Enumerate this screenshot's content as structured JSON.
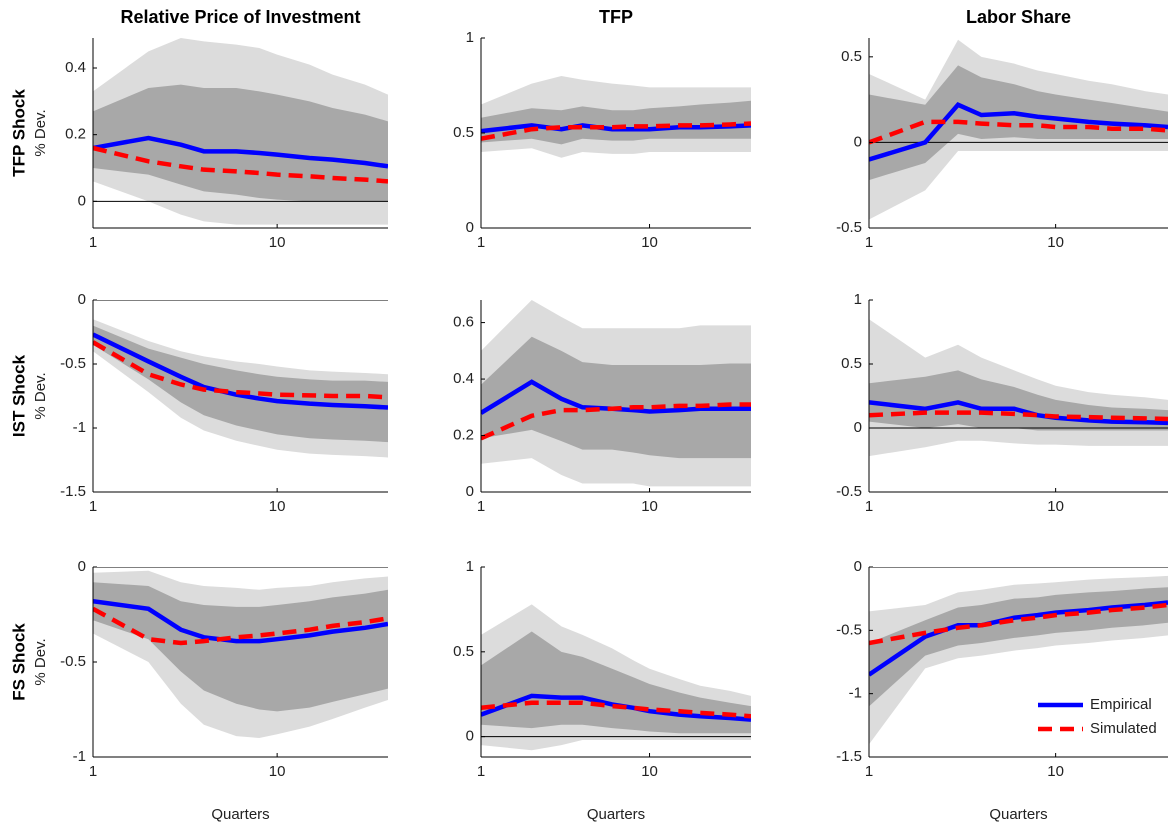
{
  "chart_data": [
    {
      "type": "line",
      "title": "Relative Price of Investment",
      "row_label": "TFP Shock",
      "ylabel": "% Dev.",
      "log_x": true,
      "zero_line": true,
      "x": [
        1,
        2,
        3,
        4,
        6,
        8,
        10,
        15,
        20,
        30,
        40
      ],
      "xlim": [
        1,
        40
      ],
      "xticks": [
        1,
        10
      ],
      "ylim": [
        -0.08,
        0.49
      ],
      "yticks": [
        0,
        0.2,
        0.4
      ],
      "bands": [
        {
          "color": "#dcdcdc",
          "lower": [
            0.06,
            0.0,
            -0.04,
            -0.06,
            -0.07,
            -0.07,
            -0.07,
            -0.07,
            -0.07,
            -0.07,
            -0.07
          ],
          "upper": [
            0.33,
            0.45,
            0.49,
            0.48,
            0.47,
            0.46,
            0.44,
            0.41,
            0.38,
            0.35,
            0.32
          ]
        },
        {
          "color": "#a8a8a8",
          "lower": [
            0.1,
            0.08,
            0.05,
            0.03,
            0.02,
            0.01,
            0.005,
            0.0,
            0.0,
            0.0,
            0.0
          ],
          "upper": [
            0.27,
            0.34,
            0.35,
            0.34,
            0.34,
            0.33,
            0.32,
            0.3,
            0.28,
            0.26,
            0.24
          ]
        }
      ],
      "series": [
        {
          "color": "#0000ff",
          "values": [
            0.16,
            0.19,
            0.17,
            0.15,
            0.15,
            0.145,
            0.14,
            0.13,
            0.125,
            0.115,
            0.105
          ]
        },
        {
          "color": "#ff0000",
          "dashed": true,
          "values": [
            0.16,
            0.12,
            0.105,
            0.095,
            0.09,
            0.085,
            0.08,
            0.075,
            0.07,
            0.065,
            0.06
          ]
        }
      ]
    },
    {
      "type": "line",
      "title": "TFP",
      "log_x": true,
      "zero_line": true,
      "x": [
        1,
        2,
        3,
        4,
        6,
        8,
        10,
        15,
        20,
        30,
        40
      ],
      "xlim": [
        1,
        40
      ],
      "xticks": [
        1,
        10
      ],
      "ylim": [
        0,
        1
      ],
      "yticks": [
        0,
        0.5,
        1
      ],
      "bands": [
        {
          "color": "#dcdcdc",
          "lower": [
            0.4,
            0.42,
            0.37,
            0.4,
            0.39,
            0.39,
            0.4,
            0.4,
            0.4,
            0.4,
            0.4
          ],
          "upper": [
            0.65,
            0.76,
            0.8,
            0.78,
            0.76,
            0.75,
            0.74,
            0.74,
            0.74,
            0.74,
            0.74
          ]
        },
        {
          "color": "#a8a8a8",
          "lower": [
            0.45,
            0.47,
            0.44,
            0.47,
            0.46,
            0.46,
            0.47,
            0.47,
            0.47,
            0.47,
            0.47
          ],
          "upper": [
            0.58,
            0.63,
            0.62,
            0.64,
            0.62,
            0.62,
            0.63,
            0.64,
            0.65,
            0.66,
            0.67
          ]
        }
      ],
      "series": [
        {
          "color": "#0000ff",
          "values": [
            0.51,
            0.54,
            0.52,
            0.54,
            0.52,
            0.52,
            0.52,
            0.53,
            0.53,
            0.535,
            0.54
          ]
        },
        {
          "color": "#ff0000",
          "dashed": true,
          "values": [
            0.47,
            0.52,
            0.53,
            0.53,
            0.53,
            0.535,
            0.535,
            0.54,
            0.54,
            0.545,
            0.55
          ]
        }
      ]
    },
    {
      "type": "line",
      "title": "Labor Share",
      "log_x": true,
      "zero_line": true,
      "x": [
        1,
        2,
        3,
        4,
        6,
        8,
        10,
        15,
        20,
        30,
        40
      ],
      "xlim": [
        1,
        40
      ],
      "xticks": [
        1,
        10
      ],
      "ylim": [
        -0.5,
        0.61
      ],
      "yticks": [
        -0.5,
        0,
        0.5
      ],
      "bands": [
        {
          "color": "#dcdcdc",
          "lower": [
            -0.45,
            -0.28,
            -0.05,
            -0.05,
            -0.05,
            -0.05,
            -0.05,
            -0.05,
            -0.05,
            -0.05,
            -0.05
          ],
          "upper": [
            0.4,
            0.25,
            0.6,
            0.5,
            0.46,
            0.42,
            0.4,
            0.36,
            0.34,
            0.3,
            0.28
          ]
        },
        {
          "color": "#a8a8a8",
          "lower": [
            -0.22,
            -0.12,
            0.05,
            0.02,
            0.03,
            0.02,
            0.02,
            0.02,
            0.02,
            0.02,
            0.02
          ],
          "upper": [
            0.28,
            0.22,
            0.45,
            0.38,
            0.34,
            0.3,
            0.28,
            0.25,
            0.23,
            0.2,
            0.18
          ]
        }
      ],
      "series": [
        {
          "color": "#0000ff",
          "values": [
            -0.1,
            0.0,
            0.22,
            0.16,
            0.17,
            0.15,
            0.14,
            0.12,
            0.11,
            0.1,
            0.09
          ]
        },
        {
          "color": "#ff0000",
          "dashed": true,
          "values": [
            0.0,
            0.12,
            0.12,
            0.11,
            0.1,
            0.1,
            0.09,
            0.09,
            0.08,
            0.08,
            0.07
          ]
        }
      ]
    },
    {
      "type": "line",
      "row_label": "IST Shock",
      "ylabel": "% Dev.",
      "log_x": true,
      "zero_line": true,
      "x": [
        1,
        2,
        3,
        4,
        6,
        8,
        10,
        15,
        20,
        30,
        40
      ],
      "xlim": [
        1,
        40
      ],
      "xticks": [
        1,
        10
      ],
      "ylim": [
        -1.5,
        0
      ],
      "yticks": [
        -1.5,
        -1,
        -0.5,
        0
      ],
      "bands": [
        {
          "color": "#dcdcdc",
          "lower": [
            -0.4,
            -0.72,
            -0.92,
            -1.02,
            -1.1,
            -1.14,
            -1.17,
            -1.2,
            -1.21,
            -1.22,
            -1.23
          ],
          "upper": [
            -0.15,
            -0.32,
            -0.4,
            -0.44,
            -0.48,
            -0.5,
            -0.52,
            -0.55,
            -0.56,
            -0.57,
            -0.58
          ]
        },
        {
          "color": "#a8a8a8",
          "lower": [
            -0.35,
            -0.62,
            -0.8,
            -0.9,
            -0.98,
            -1.02,
            -1.05,
            -1.08,
            -1.09,
            -1.1,
            -1.11
          ],
          "upper": [
            -0.2,
            -0.38,
            -0.45,
            -0.5,
            -0.55,
            -0.58,
            -0.6,
            -0.62,
            -0.63,
            -0.63,
            -0.64
          ]
        }
      ],
      "series": [
        {
          "color": "#0000ff",
          "values": [
            -0.27,
            -0.48,
            -0.6,
            -0.68,
            -0.74,
            -0.77,
            -0.79,
            -0.81,
            -0.82,
            -0.83,
            -0.84
          ]
        },
        {
          "color": "#ff0000",
          "dashed": true,
          "values": [
            -0.33,
            -0.58,
            -0.66,
            -0.7,
            -0.72,
            -0.73,
            -0.74,
            -0.745,
            -0.75,
            -0.75,
            -0.76
          ]
        }
      ]
    },
    {
      "type": "line",
      "log_x": true,
      "zero_line": true,
      "x": [
        1,
        2,
        3,
        4,
        6,
        8,
        10,
        15,
        20,
        30,
        40
      ],
      "xlim": [
        1,
        40
      ],
      "xticks": [
        1,
        10
      ],
      "ylim": [
        0,
        0.68
      ],
      "yticks": [
        0,
        0.2,
        0.4,
        0.6
      ],
      "bands": [
        {
          "color": "#dcdcdc",
          "lower": [
            0.1,
            0.12,
            0.06,
            0.03,
            0.03,
            0.03,
            0.02,
            0.02,
            0.02,
            0.02,
            0.02
          ],
          "upper": [
            0.5,
            0.68,
            0.62,
            0.58,
            0.58,
            0.58,
            0.58,
            0.58,
            0.59,
            0.59,
            0.59
          ]
        },
        {
          "color": "#a8a8a8",
          "lower": [
            0.19,
            0.22,
            0.18,
            0.15,
            0.15,
            0.14,
            0.13,
            0.12,
            0.12,
            0.12,
            0.12
          ],
          "upper": [
            0.38,
            0.55,
            0.5,
            0.46,
            0.45,
            0.45,
            0.45,
            0.45,
            0.45,
            0.455,
            0.455
          ]
        }
      ],
      "series": [
        {
          "color": "#0000ff",
          "values": [
            0.28,
            0.39,
            0.33,
            0.3,
            0.295,
            0.29,
            0.285,
            0.29,
            0.295,
            0.295,
            0.295
          ]
        },
        {
          "color": "#ff0000",
          "dashed": true,
          "values": [
            0.19,
            0.27,
            0.29,
            0.29,
            0.295,
            0.3,
            0.3,
            0.305,
            0.305,
            0.31,
            0.31
          ]
        }
      ]
    },
    {
      "type": "line",
      "log_x": true,
      "zero_line": true,
      "x": [
        1,
        2,
        3,
        4,
        6,
        8,
        10,
        15,
        20,
        30,
        40
      ],
      "xlim": [
        1,
        40
      ],
      "xticks": [
        1,
        10
      ],
      "ylim": [
        -0.5,
        1
      ],
      "yticks": [
        -0.5,
        0,
        0.5,
        1
      ],
      "bands": [
        {
          "color": "#dcdcdc",
          "lower": [
            -0.22,
            -0.15,
            -0.1,
            -0.1,
            -0.12,
            -0.13,
            -0.13,
            -0.14,
            -0.14,
            -0.14,
            -0.14
          ],
          "upper": [
            0.85,
            0.55,
            0.65,
            0.55,
            0.45,
            0.38,
            0.33,
            0.28,
            0.26,
            0.24,
            0.22
          ]
        },
        {
          "color": "#a8a8a8",
          "lower": [
            0.05,
            0.0,
            0.03,
            0.0,
            0.0,
            -0.02,
            -0.02,
            -0.02,
            -0.02,
            -0.02,
            -0.02
          ],
          "upper": [
            0.35,
            0.4,
            0.45,
            0.38,
            0.32,
            0.26,
            0.22,
            0.18,
            0.16,
            0.15,
            0.14
          ]
        }
      ],
      "series": [
        {
          "color": "#0000ff",
          "values": [
            0.2,
            0.15,
            0.2,
            0.15,
            0.15,
            0.1,
            0.08,
            0.06,
            0.05,
            0.045,
            0.04
          ]
        },
        {
          "color": "#ff0000",
          "dashed": true,
          "values": [
            0.1,
            0.12,
            0.12,
            0.12,
            0.11,
            0.1,
            0.09,
            0.085,
            0.08,
            0.075,
            0.07
          ]
        }
      ]
    },
    {
      "type": "line",
      "row_label": "FS Shock",
      "ylabel": "% Dev.",
      "xlabel": "Quarters",
      "log_x": true,
      "zero_line": true,
      "x": [
        1,
        2,
        3,
        4,
        6,
        8,
        10,
        15,
        20,
        30,
        40
      ],
      "xlim": [
        1,
        40
      ],
      "xticks": [
        1,
        10
      ],
      "ylim": [
        -1,
        0
      ],
      "yticks": [
        -1,
        -0.5,
        0
      ],
      "bands": [
        {
          "color": "#dcdcdc",
          "lower": [
            -0.35,
            -0.5,
            -0.72,
            -0.83,
            -0.89,
            -0.9,
            -0.88,
            -0.84,
            -0.8,
            -0.74,
            -0.7
          ],
          "upper": [
            -0.03,
            -0.02,
            -0.08,
            -0.1,
            -0.11,
            -0.12,
            -0.11,
            -0.1,
            -0.08,
            -0.06,
            -0.05
          ]
        },
        {
          "color": "#a8a8a8",
          "lower": [
            -0.28,
            -0.38,
            -0.55,
            -0.65,
            -0.72,
            -0.75,
            -0.76,
            -0.74,
            -0.71,
            -0.67,
            -0.64
          ],
          "upper": [
            -0.08,
            -0.1,
            -0.18,
            -0.2,
            -0.21,
            -0.21,
            -0.2,
            -0.18,
            -0.16,
            -0.14,
            -0.12
          ]
        }
      ],
      "series": [
        {
          "color": "#0000ff",
          "values": [
            -0.18,
            -0.22,
            -0.33,
            -0.37,
            -0.39,
            -0.39,
            -0.38,
            -0.36,
            -0.34,
            -0.32,
            -0.3
          ]
        },
        {
          "color": "#ff0000",
          "dashed": true,
          "values": [
            -0.22,
            -0.38,
            -0.4,
            -0.39,
            -0.37,
            -0.36,
            -0.35,
            -0.33,
            -0.31,
            -0.29,
            -0.27
          ]
        }
      ]
    },
    {
      "type": "line",
      "xlabel": "Quarters",
      "log_x": true,
      "zero_line": true,
      "x": [
        1,
        2,
        3,
        4,
        6,
        8,
        10,
        15,
        20,
        30,
        40
      ],
      "xlim": [
        1,
        40
      ],
      "xticks": [
        1,
        10
      ],
      "ylim": [
        -0.12,
        1
      ],
      "yticks": [
        0,
        0.5,
        1
      ],
      "bands": [
        {
          "color": "#dcdcdc",
          "lower": [
            -0.05,
            -0.08,
            -0.05,
            -0.02,
            -0.02,
            -0.02,
            -0.02,
            -0.02,
            -0.02,
            -0.02,
            -0.02
          ],
          "upper": [
            0.6,
            0.78,
            0.65,
            0.6,
            0.52,
            0.45,
            0.4,
            0.34,
            0.3,
            0.27,
            0.24
          ]
        },
        {
          "color": "#a8a8a8",
          "lower": [
            0.07,
            0.05,
            0.07,
            0.07,
            0.05,
            0.04,
            0.03,
            0.02,
            0.02,
            0.02,
            0.02
          ],
          "upper": [
            0.42,
            0.62,
            0.5,
            0.47,
            0.4,
            0.35,
            0.31,
            0.26,
            0.23,
            0.2,
            0.18
          ]
        }
      ],
      "series": [
        {
          "color": "#0000ff",
          "values": [
            0.13,
            0.24,
            0.23,
            0.23,
            0.19,
            0.17,
            0.15,
            0.13,
            0.12,
            0.11,
            0.1
          ]
        },
        {
          "color": "#ff0000",
          "dashed": true,
          "values": [
            0.17,
            0.2,
            0.2,
            0.2,
            0.18,
            0.17,
            0.16,
            0.15,
            0.14,
            0.13,
            0.12
          ]
        }
      ]
    },
    {
      "type": "line",
      "xlabel": "Quarters",
      "log_x": true,
      "zero_line": true,
      "legend": "lower right",
      "x": [
        1,
        2,
        3,
        4,
        6,
        8,
        10,
        15,
        20,
        30,
        40
      ],
      "xlim": [
        1,
        40
      ],
      "xticks": [
        1,
        10
      ],
      "ylim": [
        -1.5,
        0
      ],
      "yticks": [
        -1.5,
        -1,
        -0.5,
        0
      ],
      "bands": [
        {
          "color": "#dcdcdc",
          "lower": [
            -1.4,
            -0.8,
            -0.72,
            -0.7,
            -0.66,
            -0.64,
            -0.62,
            -0.6,
            -0.58,
            -0.56,
            -0.54
          ],
          "upper": [
            -0.35,
            -0.3,
            -0.2,
            -0.18,
            -0.14,
            -0.13,
            -0.12,
            -0.1,
            -0.09,
            -0.08,
            -0.07
          ]
        },
        {
          "color": "#a8a8a8",
          "lower": [
            -1.1,
            -0.7,
            -0.62,
            -0.6,
            -0.56,
            -0.54,
            -0.52,
            -0.5,
            -0.48,
            -0.46,
            -0.44
          ],
          "upper": [
            -0.6,
            -0.42,
            -0.32,
            -0.3,
            -0.25,
            -0.24,
            -0.22,
            -0.2,
            -0.19,
            -0.17,
            -0.16
          ]
        }
      ],
      "series": [
        {
          "name": "Empirical",
          "color": "#0000ff",
          "values": [
            -0.85,
            -0.55,
            -0.46,
            -0.46,
            -0.4,
            -0.38,
            -0.36,
            -0.34,
            -0.32,
            -0.3,
            -0.28
          ]
        },
        {
          "name": "Simulated",
          "color": "#ff0000",
          "dashed": true,
          "values": [
            -0.6,
            -0.52,
            -0.48,
            -0.46,
            -0.42,
            -0.4,
            -0.38,
            -0.36,
            -0.34,
            -0.32,
            -0.3
          ]
        }
      ]
    }
  ]
}
